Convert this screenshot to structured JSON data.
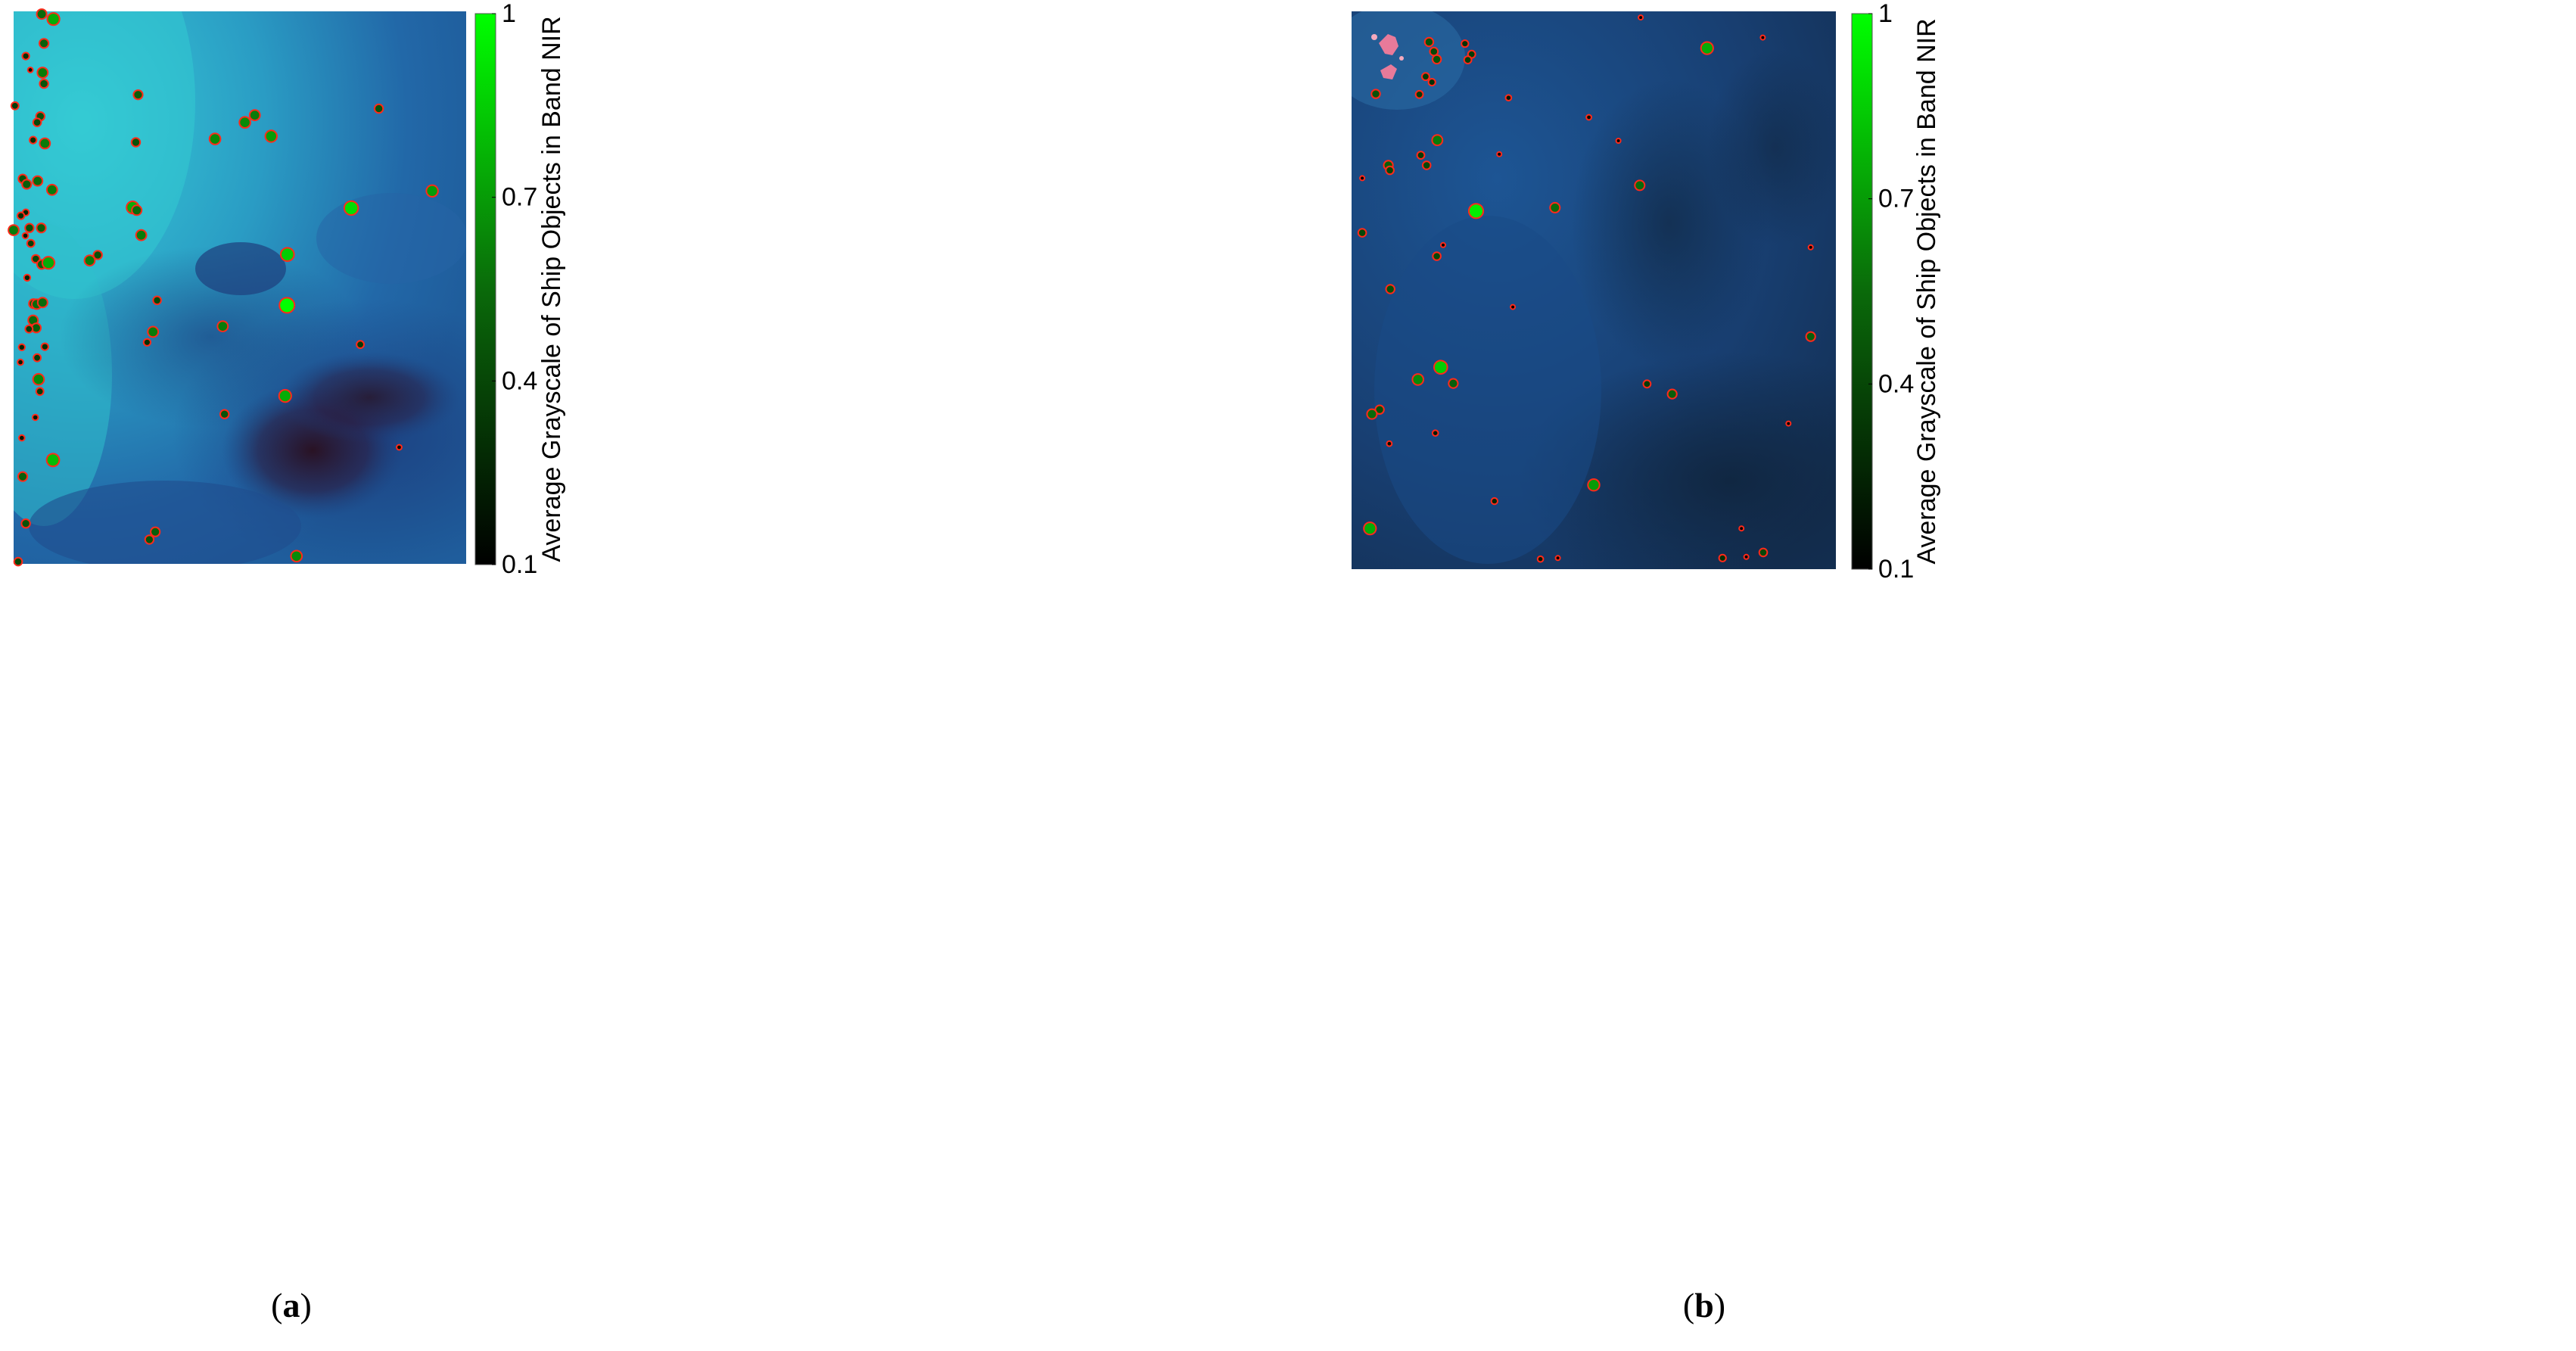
{
  "figure": {
    "panels": [
      {
        "id": "a",
        "caption_open": "(",
        "caption_letter": "a",
        "caption_close": ")"
      },
      {
        "id": "b",
        "caption_open": "(",
        "caption_letter": "b",
        "caption_close": ")"
      }
    ]
  },
  "colors": {
    "marker_stroke": "#ff2a1a",
    "colorbar_low": "#000000",
    "colorbar_mid": "#0a6a0a",
    "colorbar_high": "#00ff00",
    "panel_a_sea_light": "#2ec5cf",
    "panel_a_sea_dark": "#1a3d74",
    "panel_b_sea_light": "#1d5590",
    "panel_b_sea_dark": "#0f2a46"
  },
  "chart_data": [
    {
      "type": "scatter",
      "panel": "a",
      "colorbar": {
        "label": "Average Grayscale of Ship Objects in Band NIR",
        "ticks": [
          "0.1",
          "0.4",
          "0.7",
          "1"
        ],
        "range": [
          0.1,
          1
        ]
      },
      "points": [
        {
          "x": 0.062,
          "y": 0.005,
          "v": 0.55
        },
        {
          "x": 0.088,
          "y": 0.014,
          "v": 0.75
        },
        {
          "x": 0.067,
          "y": 0.058,
          "v": 0.5
        },
        {
          "x": 0.027,
          "y": 0.081,
          "v": 0.3
        },
        {
          "x": 0.037,
          "y": 0.106,
          "v": 0.15
        },
        {
          "x": 0.064,
          "y": 0.111,
          "v": 0.6
        },
        {
          "x": 0.067,
          "y": 0.131,
          "v": 0.45
        },
        {
          "x": 0.003,
          "y": 0.171,
          "v": 0.35
        },
        {
          "x": 0.059,
          "y": 0.19,
          "v": 0.45
        },
        {
          "x": 0.052,
          "y": 0.201,
          "v": 0.4
        },
        {
          "x": 0.043,
          "y": 0.233,
          "v": 0.3
        },
        {
          "x": 0.069,
          "y": 0.239,
          "v": 0.6
        },
        {
          "x": 0.275,
          "y": 0.151,
          "v": 0.5
        },
        {
          "x": 0.27,
          "y": 0.237,
          "v": 0.45
        },
        {
          "x": 0.445,
          "y": 0.231,
          "v": 0.65
        },
        {
          "x": 0.511,
          "y": 0.201,
          "v": 0.65
        },
        {
          "x": 0.533,
          "y": 0.188,
          "v": 0.6
        },
        {
          "x": 0.569,
          "y": 0.226,
          "v": 0.7
        },
        {
          "x": 0.807,
          "y": 0.176,
          "v": 0.45
        },
        {
          "x": 0.925,
          "y": 0.325,
          "v": 0.7
        },
        {
          "x": 0.746,
          "y": 0.356,
          "v": 0.9
        },
        {
          "x": 0.02,
          "y": 0.303,
          "v": 0.45
        },
        {
          "x": 0.029,
          "y": 0.313,
          "v": 0.5
        },
        {
          "x": 0.053,
          "y": 0.307,
          "v": 0.55
        },
        {
          "x": 0.085,
          "y": 0.323,
          "v": 0.6
        },
        {
          "x": 0.027,
          "y": 0.364,
          "v": 0.25
        },
        {
          "x": 0.016,
          "y": 0.37,
          "v": 0.3
        },
        {
          "x": 0.0,
          "y": 0.396,
          "v": 0.6
        },
        {
          "x": 0.035,
          "y": 0.392,
          "v": 0.45
        },
        {
          "x": 0.061,
          "y": 0.392,
          "v": 0.5
        },
        {
          "x": 0.026,
          "y": 0.406,
          "v": 0.2
        },
        {
          "x": 0.038,
          "y": 0.42,
          "v": 0.35
        },
        {
          "x": 0.049,
          "y": 0.448,
          "v": 0.4
        },
        {
          "x": 0.062,
          "y": 0.458,
          "v": 0.5
        },
        {
          "x": 0.077,
          "y": 0.455,
          "v": 0.75
        },
        {
          "x": 0.168,
          "y": 0.451,
          "v": 0.6
        },
        {
          "x": 0.186,
          "y": 0.441,
          "v": 0.45
        },
        {
          "x": 0.263,
          "y": 0.355,
          "v": 0.75
        },
        {
          "x": 0.272,
          "y": 0.36,
          "v": 0.55
        },
        {
          "x": 0.282,
          "y": 0.405,
          "v": 0.6
        },
        {
          "x": 0.605,
          "y": 0.44,
          "v": 0.85
        },
        {
          "x": 0.03,
          "y": 0.482,
          "v": 0.25
        },
        {
          "x": 0.044,
          "y": 0.529,
          "v": 0.5
        },
        {
          "x": 0.051,
          "y": 0.53,
          "v": 0.55
        },
        {
          "x": 0.064,
          "y": 0.527,
          "v": 0.55
        },
        {
          "x": 0.043,
          "y": 0.559,
          "v": 0.55
        },
        {
          "x": 0.05,
          "y": 0.573,
          "v": 0.5
        },
        {
          "x": 0.034,
          "y": 0.575,
          "v": 0.35
        },
        {
          "x": 0.018,
          "y": 0.608,
          "v": 0.25
        },
        {
          "x": 0.069,
          "y": 0.607,
          "v": 0.3
        },
        {
          "x": 0.052,
          "y": 0.627,
          "v": 0.35
        },
        {
          "x": 0.015,
          "y": 0.635,
          "v": 0.2
        },
        {
          "x": 0.317,
          "y": 0.523,
          "v": 0.4
        },
        {
          "x": 0.308,
          "y": 0.58,
          "v": 0.6
        },
        {
          "x": 0.295,
          "y": 0.599,
          "v": 0.3
        },
        {
          "x": 0.462,
          "y": 0.57,
          "v": 0.6
        },
        {
          "x": 0.604,
          "y": 0.532,
          "v": 1.0
        },
        {
          "x": 0.766,
          "y": 0.603,
          "v": 0.35
        },
        {
          "x": 0.055,
          "y": 0.666,
          "v": 0.65
        },
        {
          "x": 0.058,
          "y": 0.688,
          "v": 0.35
        },
        {
          "x": 0.048,
          "y": 0.735,
          "v": 0.2
        },
        {
          "x": 0.6,
          "y": 0.696,
          "v": 0.75
        },
        {
          "x": 0.466,
          "y": 0.729,
          "v": 0.45
        },
        {
          "x": 0.018,
          "y": 0.772,
          "v": 0.2
        },
        {
          "x": 0.087,
          "y": 0.812,
          "v": 0.8
        },
        {
          "x": 0.852,
          "y": 0.789,
          "v": 0.15
        },
        {
          "x": 0.02,
          "y": 0.842,
          "v": 0.5
        },
        {
          "x": 0.027,
          "y": 0.927,
          "v": 0.45
        },
        {
          "x": 0.313,
          "y": 0.942,
          "v": 0.5
        },
        {
          "x": 0.3,
          "y": 0.956,
          "v": 0.45
        },
        {
          "x": 0.625,
          "y": 0.986,
          "v": 0.65
        },
        {
          "x": 0.01,
          "y": 0.996,
          "v": 0.4
        }
      ]
    },
    {
      "type": "scatter",
      "panel": "b",
      "colorbar": {
        "label": "Average Grayscale of Ship Objects in Band NIR",
        "ticks": [
          "0.1",
          "0.4",
          "0.7",
          "1"
        ],
        "range": [
          0.1,
          1
        ]
      },
      "points": [
        {
          "x": 0.597,
          "y": 0.011,
          "v": 0.1
        },
        {
          "x": 0.849,
          "y": 0.047,
          "v": 0.1
        },
        {
          "x": 0.734,
          "y": 0.066,
          "v": 0.75
        },
        {
          "x": 0.16,
          "y": 0.055,
          "v": 0.45
        },
        {
          "x": 0.17,
          "y": 0.072,
          "v": 0.4
        },
        {
          "x": 0.176,
          "y": 0.086,
          "v": 0.45
        },
        {
          "x": 0.234,
          "y": 0.058,
          "v": 0.3
        },
        {
          "x": 0.248,
          "y": 0.077,
          "v": 0.35
        },
        {
          "x": 0.24,
          "y": 0.087,
          "v": 0.35
        },
        {
          "x": 0.153,
          "y": 0.117,
          "v": 0.35
        },
        {
          "x": 0.166,
          "y": 0.127,
          "v": 0.3
        },
        {
          "x": 0.05,
          "y": 0.148,
          "v": 0.45
        },
        {
          "x": 0.14,
          "y": 0.149,
          "v": 0.35
        },
        {
          "x": 0.324,
          "y": 0.155,
          "v": 0.2
        },
        {
          "x": 0.49,
          "y": 0.19,
          "v": 0.15
        },
        {
          "x": 0.551,
          "y": 0.232,
          "v": 0.1
        },
        {
          "x": 0.177,
          "y": 0.231,
          "v": 0.6
        },
        {
          "x": 0.143,
          "y": 0.258,
          "v": 0.35
        },
        {
          "x": 0.305,
          "y": 0.256,
          "v": 0.1
        },
        {
          "x": 0.155,
          "y": 0.276,
          "v": 0.4
        },
        {
          "x": 0.076,
          "y": 0.276,
          "v": 0.5
        },
        {
          "x": 0.079,
          "y": 0.285,
          "v": 0.4
        },
        {
          "x": 0.022,
          "y": 0.299,
          "v": 0.1
        },
        {
          "x": 0.595,
          "y": 0.312,
          "v": 0.55
        },
        {
          "x": 0.42,
          "y": 0.352,
          "v": 0.55
        },
        {
          "x": 0.257,
          "y": 0.358,
          "v": 0.95
        },
        {
          "x": 0.022,
          "y": 0.397,
          "v": 0.4
        },
        {
          "x": 0.189,
          "y": 0.419,
          "v": 0.1
        },
        {
          "x": 0.176,
          "y": 0.439,
          "v": 0.4
        },
        {
          "x": 0.948,
          "y": 0.423,
          "v": 0.1
        },
        {
          "x": 0.08,
          "y": 0.498,
          "v": 0.45
        },
        {
          "x": 0.333,
          "y": 0.53,
          "v": 0.1
        },
        {
          "x": 0.948,
          "y": 0.583,
          "v": 0.5
        },
        {
          "x": 0.184,
          "y": 0.638,
          "v": 0.85
        },
        {
          "x": 0.137,
          "y": 0.66,
          "v": 0.65
        },
        {
          "x": 0.21,
          "y": 0.667,
          "v": 0.5
        },
        {
          "x": 0.61,
          "y": 0.668,
          "v": 0.35
        },
        {
          "x": 0.662,
          "y": 0.686,
          "v": 0.5
        },
        {
          "x": 0.058,
          "y": 0.714,
          "v": 0.45
        },
        {
          "x": 0.042,
          "y": 0.722,
          "v": 0.55
        },
        {
          "x": 0.902,
          "y": 0.739,
          "v": 0.1
        },
        {
          "x": 0.173,
          "y": 0.756,
          "v": 0.2
        },
        {
          "x": 0.078,
          "y": 0.775,
          "v": 0.15
        },
        {
          "x": 0.5,
          "y": 0.849,
          "v": 0.7
        },
        {
          "x": 0.295,
          "y": 0.878,
          "v": 0.25
        },
        {
          "x": 0.038,
          "y": 0.927,
          "v": 0.75
        },
        {
          "x": 0.805,
          "y": 0.927,
          "v": 0.1
        },
        {
          "x": 0.39,
          "y": 0.982,
          "v": 0.2
        },
        {
          "x": 0.426,
          "y": 0.98,
          "v": 0.1
        },
        {
          "x": 0.766,
          "y": 0.98,
          "v": 0.3
        },
        {
          "x": 0.815,
          "y": 0.978,
          "v": 0.1
        },
        {
          "x": 0.85,
          "y": 0.97,
          "v": 0.4
        }
      ]
    }
  ]
}
